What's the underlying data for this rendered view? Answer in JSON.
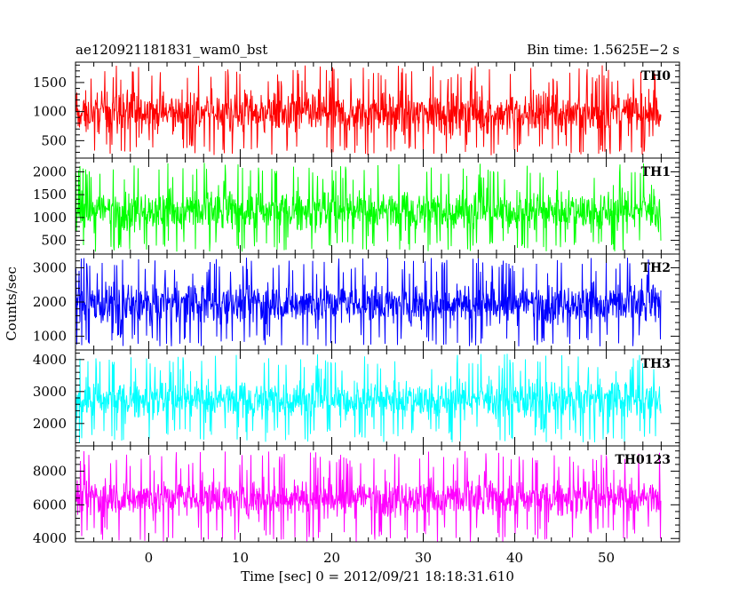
{
  "chart_data": {
    "type": "line",
    "title_left": "ae120921181831_wam0_bst",
    "title_right": "Bin time: 1.5625E−2 s",
    "xlabel": "Time [sec] 0 = 2012/09/21 18:18:31.610",
    "ylabel": "Counts/sec",
    "xlim": [
      -8,
      58
    ],
    "x_data_range": [
      -8,
      56
    ],
    "xticks": [
      0,
      10,
      20,
      30,
      40,
      50
    ],
    "xtick_labels": [
      "0",
      "10",
      "20",
      "30",
      "40",
      "50"
    ],
    "grid": false,
    "panels": [
      {
        "name": "TH0",
        "color": "#ff0000",
        "ylim": [
          200,
          1850
        ],
        "yticks": [
          500,
          1000,
          1500
        ],
        "ytick_labels": [
          "500",
          "1000",
          "1500"
        ],
        "mean": 950,
        "low": 250,
        "high": 1800,
        "typical_low": 450,
        "typical_high": 1500
      },
      {
        "name": "TH1",
        "color": "#00ff00",
        "ylim": [
          200,
          2300
        ],
        "yticks": [
          500,
          1000,
          1500,
          2000
        ],
        "ytick_labels": [
          "500",
          "1000",
          "1500",
          "2000"
        ],
        "mean": 1100,
        "low": 250,
        "high": 2200,
        "typical_low": 500,
        "typical_high": 1800
      },
      {
        "name": "TH2",
        "color": "#0000ff",
        "ylim": [
          600,
          3400
        ],
        "yticks": [
          1000,
          2000,
          3000
        ],
        "ytick_labels": [
          "1000",
          "2000",
          "3000"
        ],
        "mean": 1900,
        "low": 700,
        "high": 3300,
        "typical_low": 1100,
        "typical_high": 2800
      },
      {
        "name": "TH3",
        "color": "#00ffff",
        "ylim": [
          1300,
          4300
        ],
        "yticks": [
          2000,
          3000,
          4000
        ],
        "ytick_labels": [
          "2000",
          "3000",
          "4000"
        ],
        "mean": 2600,
        "low": 1400,
        "high": 4200,
        "typical_low": 1900,
        "typical_high": 3600
      },
      {
        "name": "TH0123",
        "color": "#ff00ff",
        "ylim": [
          3800,
          9500
        ],
        "yticks": [
          4000,
          6000,
          8000
        ],
        "ytick_labels": [
          "4000",
          "6000",
          "8000"
        ],
        "mean": 6400,
        "low": 3800,
        "high": 9200,
        "typical_low": 4800,
        "typical_high": 8000
      }
    ]
  }
}
